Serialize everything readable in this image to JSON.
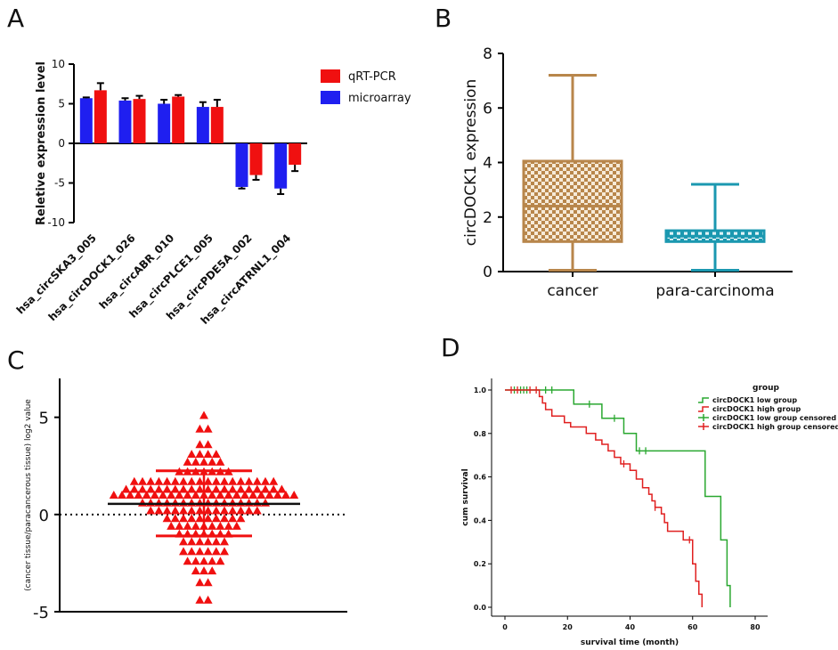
{
  "panels": {
    "A": {
      "letter": "A"
    },
    "B": {
      "letter": "B"
    },
    "C": {
      "letter": "C"
    },
    "D": {
      "letter": "D"
    }
  },
  "chart_data": [
    {
      "panel": "A",
      "type": "bar",
      "ylabel": "Reletive expression level",
      "ylim": [
        -10,
        10
      ],
      "yticks": [
        10,
        5,
        0,
        -5,
        -10
      ],
      "categories": [
        "hsa_circSKA3_005",
        "hsa_circDOCK1_026",
        "hsa_circABR_010",
        "hsa_circPLCE1_005",
        "hsa_circPDE5A_002",
        "hsa_circATRNL1_004"
      ],
      "series": [
        {
          "name": "microarray",
          "color": "#1f1ff0",
          "values": [
            5.7,
            5.4,
            5.0,
            4.6,
            -5.5,
            -5.7
          ],
          "errors": [
            0.1,
            0.3,
            0.5,
            0.6,
            0.2,
            0.7
          ]
        },
        {
          "name": "qRT-PCR",
          "color": "#f01010",
          "values": [
            6.7,
            5.6,
            5.9,
            4.6,
            -4.0,
            -2.7
          ],
          "errors": [
            0.9,
            0.4,
            0.2,
            0.9,
            0.6,
            0.8
          ]
        }
      ],
      "legend": [
        "qRT-PCR",
        "microarray"
      ],
      "legend_position": "top-right"
    },
    {
      "panel": "B",
      "type": "box",
      "ylabel": "circDOCK1 expression",
      "ylim": [
        0,
        8
      ],
      "yticks": [
        0,
        2,
        4,
        6,
        8
      ],
      "groups": [
        {
          "name": "cancer",
          "color": "#b8864b",
          "min": 0.05,
          "q1": 1.1,
          "median": 2.4,
          "q3": 4.05,
          "max": 7.2
        },
        {
          "name": "para-carcinoma",
          "color": "#1b98b0",
          "min": 0.05,
          "q1": 1.1,
          "median": 1.3,
          "q3": 1.5,
          "max": 3.2
        }
      ]
    },
    {
      "panel": "C",
      "type": "scatter",
      "ylabel": "(cancer tissue/paracancerous tissue) log2 value",
      "ylim": [
        -5,
        7
      ],
      "yticks": [
        5,
        0,
        -5
      ],
      "color": "#f01010",
      "mean": 0.55,
      "sd_upper": 2.25,
      "sd_lower": -1.1,
      "rows": [
        {
          "y": 5.1,
          "n": 1
        },
        {
          "y": 4.4,
          "n": 2
        },
        {
          "y": 3.6,
          "n": 2
        },
        {
          "y": 3.1,
          "n": 4
        },
        {
          "y": 2.7,
          "n": 5
        },
        {
          "y": 2.2,
          "n": 7
        },
        {
          "y": 1.7,
          "n": 18
        },
        {
          "y": 1.3,
          "n": 20
        },
        {
          "y": 1.0,
          "n": 23
        },
        {
          "y": 0.6,
          "n": 16
        },
        {
          "y": 0.2,
          "n": 14
        },
        {
          "y": -0.2,
          "n": 10
        },
        {
          "y": -0.6,
          "n": 9
        },
        {
          "y": -1.0,
          "n": 7
        },
        {
          "y": -1.4,
          "n": 6
        },
        {
          "y": -1.9,
          "n": 6
        },
        {
          "y": -2.4,
          "n": 5
        },
        {
          "y": -2.9,
          "n": 3
        },
        {
          "y": -3.5,
          "n": 2
        },
        {
          "y": -4.4,
          "n": 2
        }
      ]
    },
    {
      "panel": "D",
      "type": "line",
      "xlabel": "survival time (month)",
      "ylabel": "cum survival",
      "xlim": [
        0,
        80
      ],
      "ylim": [
        0,
        1
      ],
      "xticks": [
        0,
        20,
        40,
        60,
        80
      ],
      "yticks": [
        "0.0",
        "0.2",
        "0.4",
        "0.6",
        "0.8",
        "1.0"
      ],
      "legend_title": "group",
      "legend": [
        "circDOCK1 low group",
        "circDOCK1 high group",
        "circDOCK1 low group censored",
        "circDOCK1 high group censored"
      ],
      "legend_position": "top-right",
      "series": [
        {
          "name": "circDOCK1 low group",
          "color": "#2aa830",
          "steps": [
            [
              0,
              1.0
            ],
            [
              22,
              0.935
            ],
            [
              31,
              0.87
            ],
            [
              38,
              0.8
            ],
            [
              42,
              0.72
            ],
            [
              64,
              0.51
            ],
            [
              69,
              0.31
            ],
            [
              71,
              0.1
            ],
            [
              72,
              0.0
            ]
          ],
          "censored": [
            [
              3,
              1.0
            ],
            [
              5,
              1.0
            ],
            [
              6,
              1.0
            ],
            [
              7,
              1.0
            ],
            [
              13,
              1.0
            ],
            [
              15,
              1.0
            ],
            [
              27,
              0.935
            ],
            [
              35,
              0.87
            ],
            [
              43,
              0.72
            ],
            [
              45,
              0.72
            ]
          ]
        },
        {
          "name": "circDOCK1 high group",
          "color": "#e02020",
          "steps": [
            [
              0,
              1.0
            ],
            [
              11,
              0.97
            ],
            [
              12,
              0.94
            ],
            [
              13,
              0.91
            ],
            [
              15,
              0.88
            ],
            [
              19,
              0.85
            ],
            [
              21,
              0.83
            ],
            [
              26,
              0.8
            ],
            [
              29,
              0.77
            ],
            [
              31,
              0.75
            ],
            [
              33,
              0.72
            ],
            [
              35,
              0.69
            ],
            [
              37,
              0.66
            ],
            [
              40,
              0.63
            ],
            [
              42,
              0.59
            ],
            [
              44,
              0.55
            ],
            [
              46,
              0.52
            ],
            [
              47,
              0.49
            ],
            [
              48,
              0.46
            ],
            [
              50,
              0.43
            ],
            [
              51,
              0.39
            ],
            [
              52,
              0.35
            ],
            [
              57,
              0.31
            ],
            [
              60,
              0.2
            ],
            [
              61,
              0.12
            ],
            [
              62,
              0.06
            ],
            [
              63,
              0.0
            ]
          ],
          "censored": [
            [
              2,
              1.0
            ],
            [
              4,
              1.0
            ],
            [
              8,
              1.0
            ],
            [
              10,
              1.0
            ],
            [
              38,
              0.66
            ],
            [
              48,
              0.46
            ],
            [
              59,
              0.31
            ]
          ]
        }
      ]
    }
  ]
}
